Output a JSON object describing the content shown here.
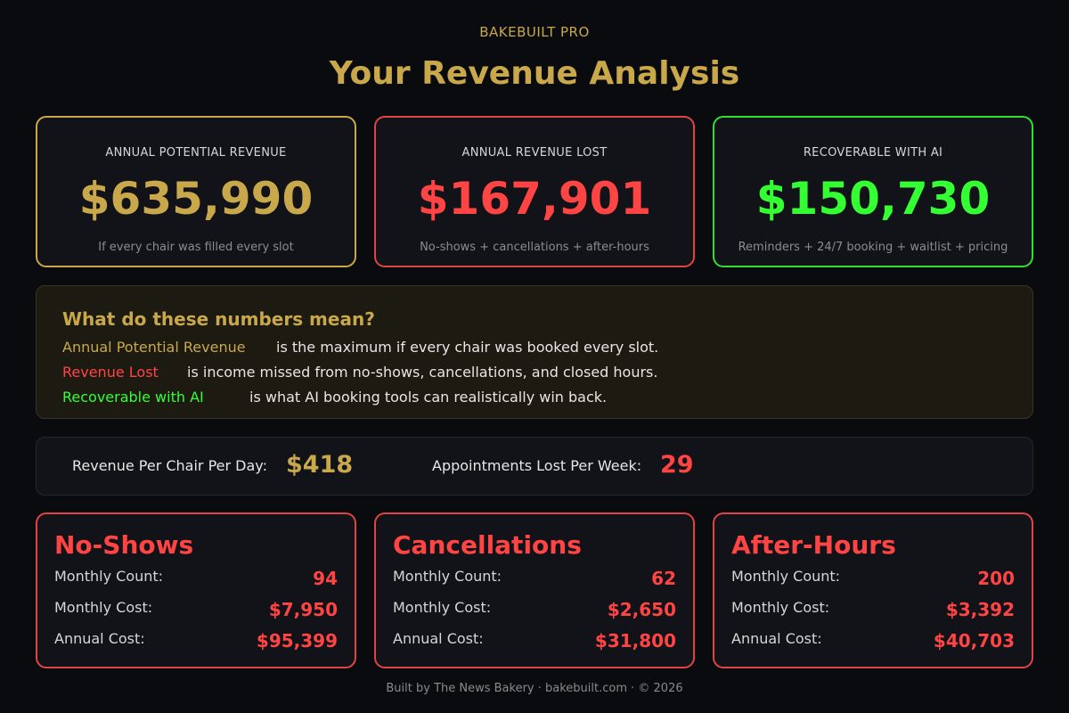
{
  "brand": "BAKEBUILT PRO",
  "title": "Your Revenue Analysis",
  "summary": [
    {
      "label": "ANNUAL POTENTIAL REVENUE",
      "value": "$635,990",
      "sub": "If every chair was filled every slot",
      "color": "#c9a84c"
    },
    {
      "label": "ANNUAL REVENUE LOST",
      "value": "$167,901",
      "sub": "No-shows + cancellations + after-hours",
      "color": "#ff4444"
    },
    {
      "label": "RECOVERABLE WITH AI",
      "value": "$150,730",
      "sub": "Reminders + 24/7 booking + waitlist + pricing",
      "color": "#33ff33"
    }
  ],
  "explain": {
    "heading": "What do these numbers mean?",
    "rows": [
      {
        "term": "Annual Potential Revenue",
        "desc": "is the maximum if every chair was booked every slot.",
        "color": "#c9a84c"
      },
      {
        "term": "Revenue Lost",
        "desc": "is income missed from no-shows, cancellations, and closed hours.",
        "color": "#ff4444"
      },
      {
        "term": "Recoverable with AI",
        "desc": "is what AI booking tools can realistically win back.",
        "color": "#33ff33"
      }
    ]
  },
  "stats": {
    "per_chair_label": "Revenue Per Chair Per Day:",
    "per_chair_value": "$418",
    "lost_label": "Appointments Lost Per Week:",
    "lost_value": "29"
  },
  "losses": [
    {
      "name": "No-Shows",
      "rows": [
        {
          "k": "Monthly Count:",
          "v": "94"
        },
        {
          "k": "Monthly Cost:",
          "v": "$7,950"
        },
        {
          "k": "Annual Cost:",
          "v": "$95,399"
        }
      ]
    },
    {
      "name": "Cancellations",
      "rows": [
        {
          "k": "Monthly Count:",
          "v": "62"
        },
        {
          "k": "Monthly Cost:",
          "v": "$2,650"
        },
        {
          "k": "Annual Cost:",
          "v": "$31,800"
        }
      ]
    },
    {
      "name": "After-Hours",
      "rows": [
        {
          "k": "Monthly Count:",
          "v": "200"
        },
        {
          "k": "Monthly Cost:",
          "v": "$3,392"
        },
        {
          "k": "Annual Cost:",
          "v": "$40,703"
        }
      ]
    }
  ],
  "footer": "Built by The News Bakery · bakebuilt.com · © 2026"
}
